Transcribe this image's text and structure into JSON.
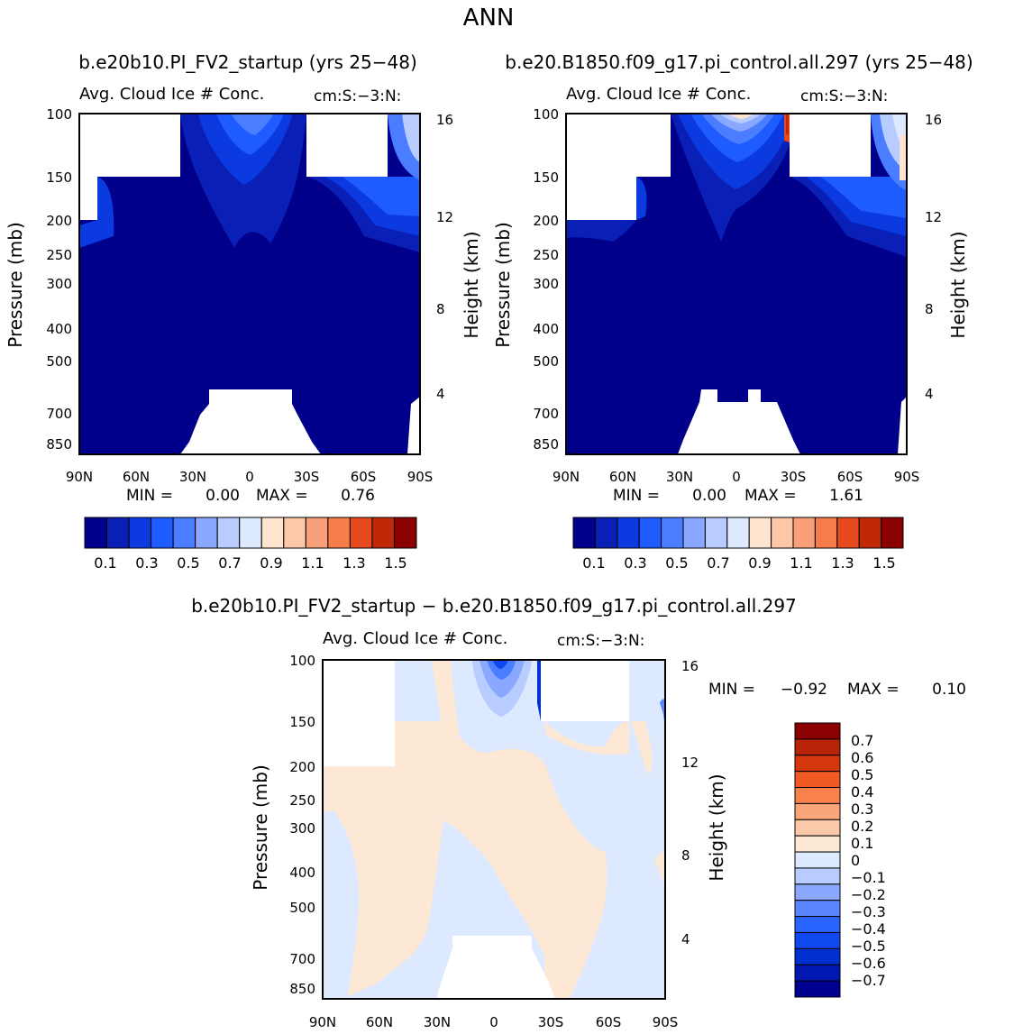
{
  "figure": {
    "season": "ANN",
    "diff_title": "b.e20b10.PI_FV2_startup − b.e20.B1850.f09_g17.pi_control.all.297"
  },
  "colors": {
    "abs_scale": [
      "#00008b",
      "#0a1fb5",
      "#0a3ae0",
      "#1f5cff",
      "#4a7dff",
      "#8aa8ff",
      "#b8ccff",
      "#dde9ff",
      "#ffe4d0",
      "#fcc8a8",
      "#f9a07a",
      "#f67d4a",
      "#e84a20",
      "#c02808",
      "#8b0000"
    ],
    "diff_scale": [
      "#000090",
      "#0018b0",
      "#0030d0",
      "#1048f0",
      "#2a64ff",
      "#5a86ff",
      "#8aa8ff",
      "#b8ccff",
      "#dde9ff",
      "#fde7d5",
      "#fccaa8",
      "#fba67a",
      "#f9814c",
      "#f05a24",
      "#d4380c",
      "#b82408",
      "#8b0000"
    ]
  },
  "chart_data": [
    {
      "type": "heatmap",
      "title": "b.e20b10.PI_FV2_startup (yrs 25−48)",
      "subtitle": "Avg. Cloud Ice # Conc.",
      "units": "cm:S:−3:N:",
      "xlabel": "",
      "ylabel": "Pressure (mb)",
      "y2label": "Height (km)",
      "x_ticks": [
        "90N",
        "60N",
        "30N",
        "0",
        "30S",
        "60S",
        "90S"
      ],
      "y_ticks": [
        "100",
        "150",
        "200",
        "250",
        "300",
        "400",
        "500",
        "700",
        "850"
      ],
      "y2_ticks": [
        "16",
        "12",
        "8",
        "4"
      ],
      "min_label": "MIN =",
      "min": "0.00",
      "max_label": "MAX =",
      "max": "0.76",
      "colorbar_ticks": [
        "0.1",
        "0.3",
        "0.5",
        "0.7",
        "0.9",
        "1.1",
        "1.3",
        "1.5"
      ],
      "colorbar_orientation": "horizontal"
    },
    {
      "type": "heatmap",
      "title": "b.e20.B1850.f09_g17.pi_control.all.297 (yrs 25−48)",
      "subtitle": "Avg. Cloud Ice # Conc.",
      "units": "cm:S:−3:N:",
      "xlabel": "",
      "ylabel": "Pressure (mb)",
      "y2label": "Height (km)",
      "x_ticks": [
        "90N",
        "60N",
        "30N",
        "0",
        "30S",
        "60S",
        "90S"
      ],
      "y_ticks": [
        "100",
        "150",
        "200",
        "250",
        "300",
        "400",
        "500",
        "700",
        "850"
      ],
      "y2_ticks": [
        "16",
        "12",
        "8",
        "4"
      ],
      "min_label": "MIN =",
      "min": "0.00",
      "max_label": "MAX =",
      "max": "1.61",
      "colorbar_ticks": [
        "0.1",
        "0.3",
        "0.5",
        "0.7",
        "0.9",
        "1.1",
        "1.3",
        "1.5"
      ],
      "colorbar_orientation": "horizontal"
    },
    {
      "type": "heatmap",
      "title": "b.e20b10.PI_FV2_startup − b.e20.B1850.f09_g17.pi_control.all.297",
      "subtitle": "Avg. Cloud Ice # Conc.",
      "units": "cm:S:−3:N:",
      "xlabel": "",
      "ylabel": "Pressure (mb)",
      "y2label": "Height (km)",
      "x_ticks": [
        "90N",
        "60N",
        "30N",
        "0",
        "30S",
        "60S",
        "90S"
      ],
      "y_ticks": [
        "100",
        "150",
        "200",
        "250",
        "300",
        "400",
        "500",
        "700",
        "850"
      ],
      "y2_ticks": [
        "16",
        "12",
        "8",
        "4"
      ],
      "min_label": "MIN =",
      "min": "−0.92",
      "max_label": "MAX =",
      "max": "0.10",
      "colorbar_ticks": [
        "0.7",
        "0.6",
        "0.5",
        "0.4",
        "0.3",
        "0.2",
        "0.1",
        "0",
        "−0.1",
        "−0.2",
        "−0.3",
        "−0.4",
        "−0.5",
        "−0.6",
        "−0.7"
      ],
      "colorbar_orientation": "vertical"
    }
  ]
}
